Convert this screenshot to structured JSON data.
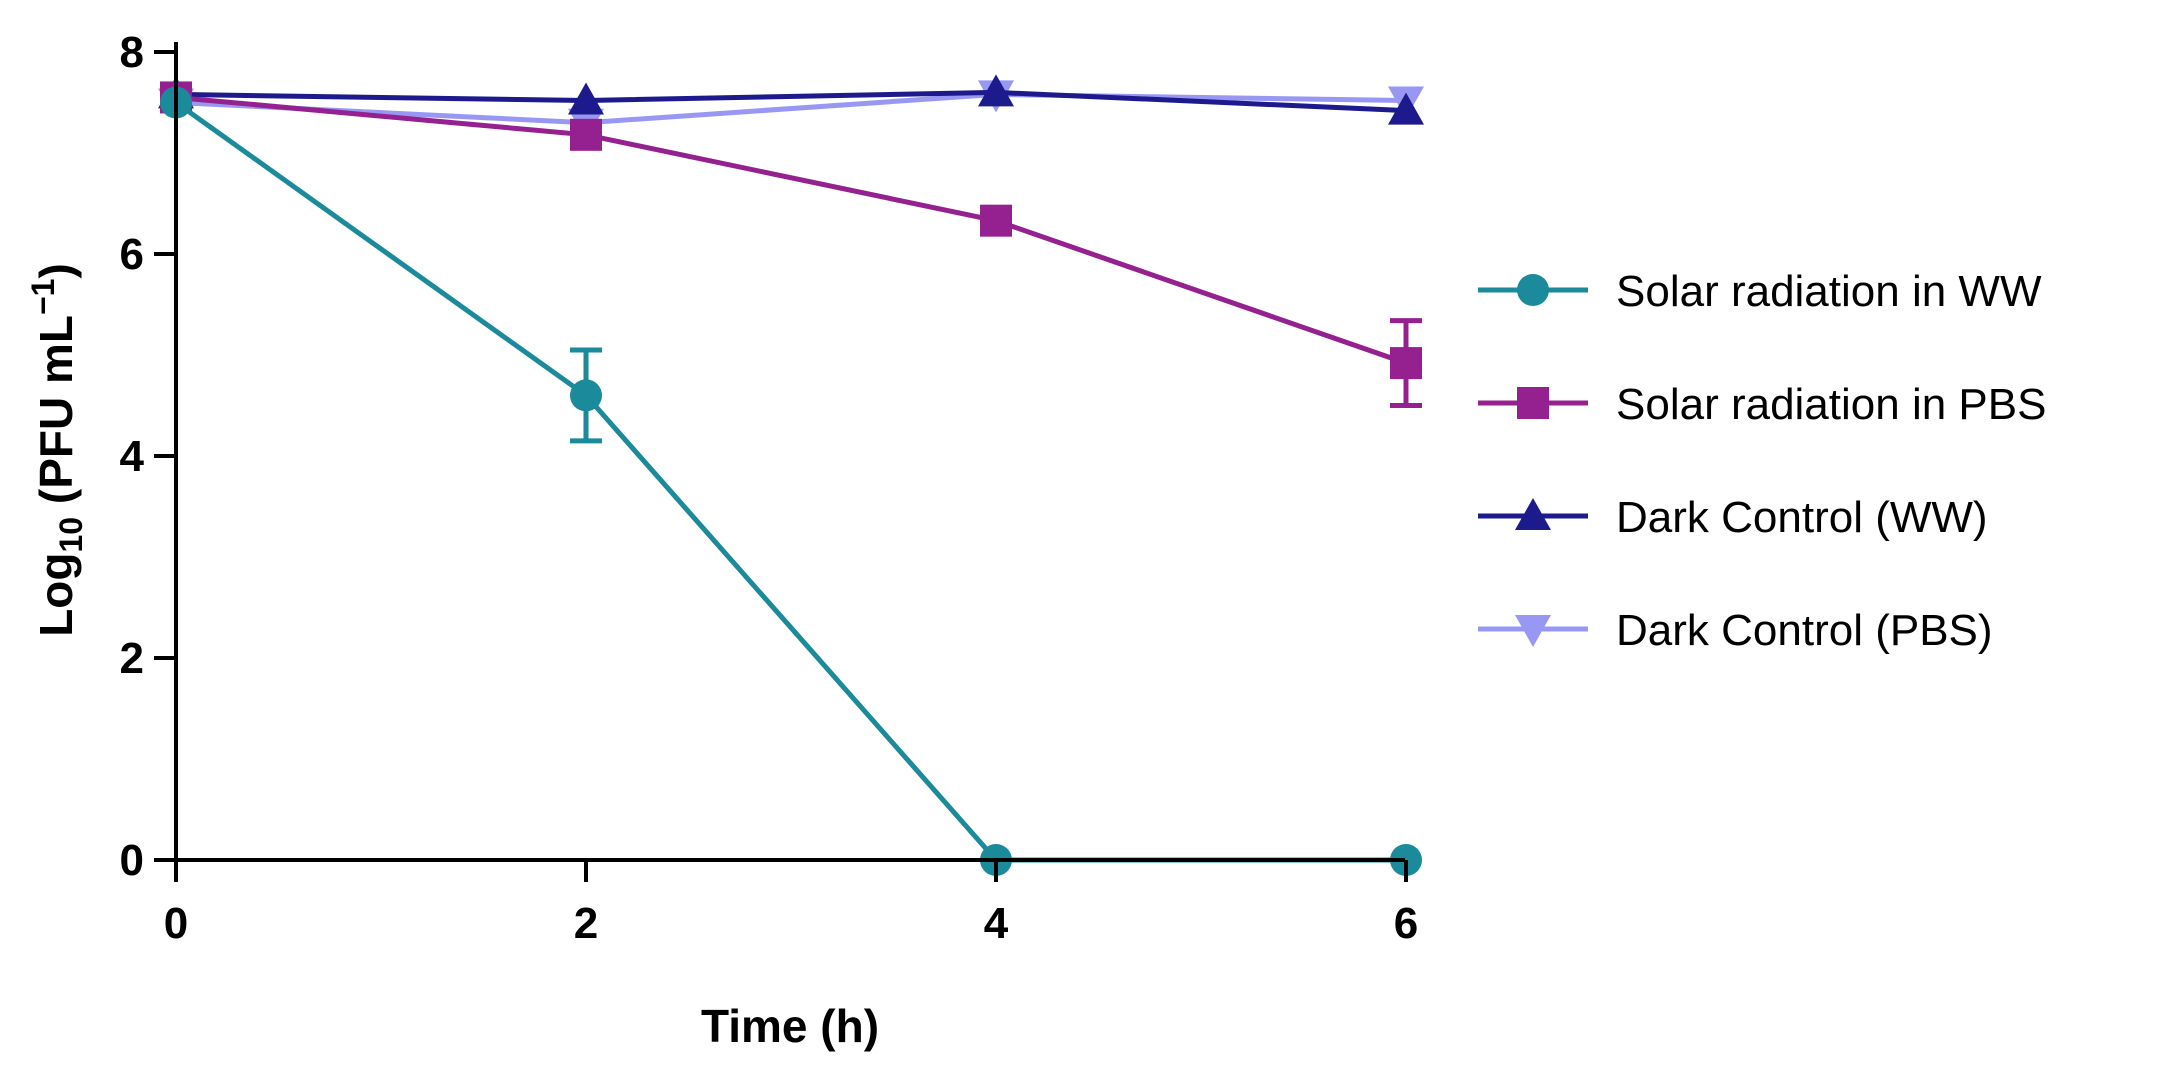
{
  "chart_data": {
    "type": "line",
    "xlabel": "Time (h)",
    "ylabel": {
      "base": "Log",
      "sub": "10",
      "rest": " (PFU mL",
      "sup": "−1",
      "end": ")"
    },
    "xlim": [
      0,
      6
    ],
    "ylim": [
      0,
      8
    ],
    "x_ticks": [
      0,
      2,
      4,
      6
    ],
    "y_ticks": [
      0,
      2,
      4,
      6,
      8
    ],
    "grid": false,
    "legend_position": "right",
    "series": [
      {
        "name": "Solar radiation in WW",
        "color": "#1b8a9a",
        "marker": "circle",
        "x": [
          0,
          2,
          4,
          6
        ],
        "y": [
          7.5,
          4.6,
          0,
          0
        ],
        "error": [
          0,
          0.45,
          0,
          0
        ]
      },
      {
        "name": "Solar radiation in PBS",
        "color": "#95208f",
        "marker": "square",
        "x": [
          0,
          2,
          4,
          6
        ],
        "y": [
          7.55,
          7.18,
          6.33,
          4.92
        ],
        "error": [
          0,
          0,
          0,
          0.42
        ]
      },
      {
        "name": "Dark Control (WW)",
        "color": "#1c1a8c",
        "marker": "triangle-up",
        "x": [
          0,
          2,
          4,
          6
        ],
        "y": [
          7.58,
          7.52,
          7.6,
          7.42
        ],
        "error": [
          0,
          0,
          0,
          0
        ]
      },
      {
        "name": "Dark Control (PBS)",
        "color": "#9898f4",
        "marker": "triangle-down",
        "x": [
          0,
          2,
          4,
          6
        ],
        "y": [
          7.5,
          7.3,
          7.58,
          7.52
        ],
        "error": [
          0,
          0,
          0,
          0
        ]
      }
    ]
  }
}
